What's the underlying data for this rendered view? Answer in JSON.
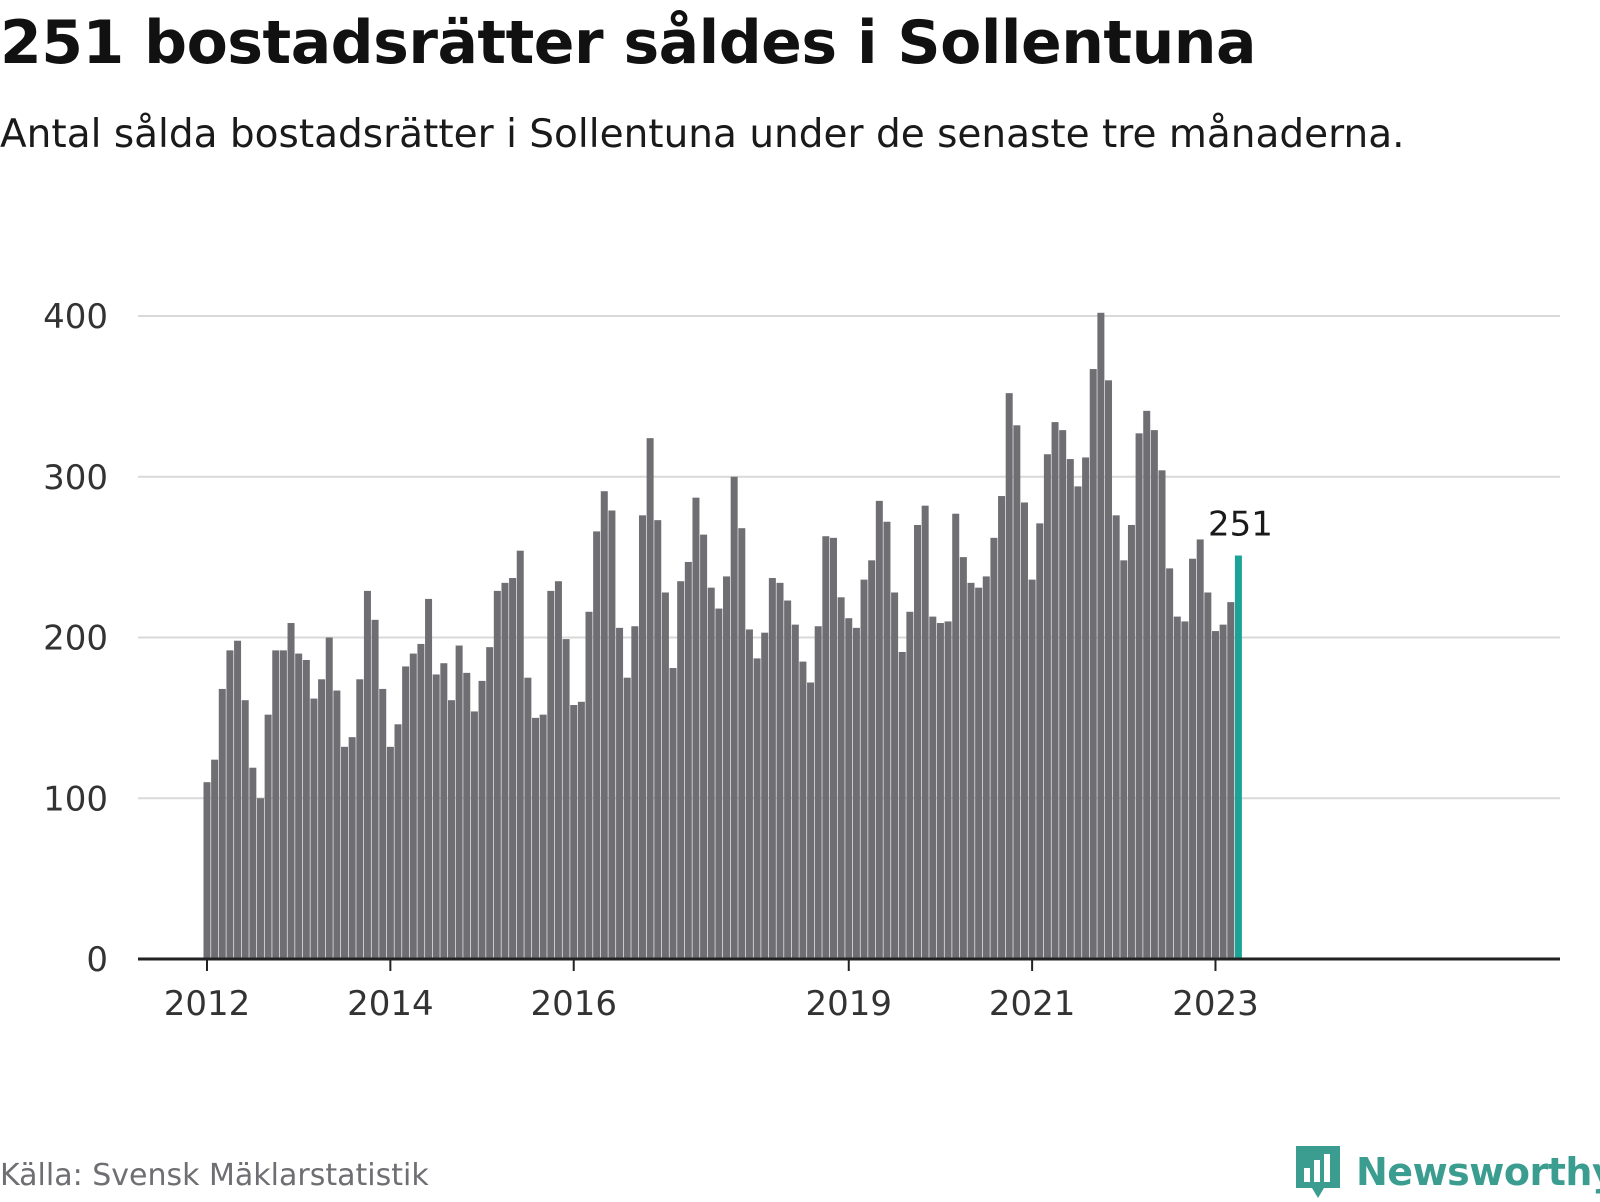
{
  "header": {
    "title": "251 bostadsrätter såldes i Sollentuna",
    "subtitle": "Antal sålda bostadsrätter i Sollentuna under de senaste tre månaderna."
  },
  "footer": {
    "source": "Källa: Svensk Mäklarstatistik",
    "brand": "Newsworthy"
  },
  "colors": {
    "bar": "#6e6e73",
    "highlight": "#1aa396",
    "grid": "#d9d9d9",
    "axis": "#222222",
    "text": "#333333",
    "brand": "#3a9d8f"
  },
  "chart_data": {
    "type": "bar",
    "title": "251 bostadsrätter såldes i Sollentuna",
    "subtitle": "Antal sålda bostadsrätter i Sollentuna under de senaste tre månaderna.",
    "xlabel": "",
    "ylabel": "",
    "ylim": [
      0,
      400
    ],
    "yticks": [
      0,
      100,
      200,
      300,
      400
    ],
    "grid": true,
    "start": "2012-01",
    "xticks": [
      {
        "label": "2012",
        "index": 0
      },
      {
        "label": "2014",
        "index": 24
      },
      {
        "label": "2016",
        "index": 48
      },
      {
        "label": "2019",
        "index": 84
      },
      {
        "label": "2021",
        "index": 108
      },
      {
        "label": "2023",
        "index": 132
      }
    ],
    "values": [
      110,
      124,
      168,
      192,
      198,
      161,
      119,
      100,
      152,
      192,
      192,
      209,
      190,
      186,
      162,
      174,
      200,
      167,
      132,
      138,
      174,
      229,
      211,
      168,
      132,
      146,
      182,
      190,
      196,
      224,
      177,
      184,
      161,
      195,
      178,
      154,
      173,
      194,
      229,
      234,
      237,
      254,
      175,
      150,
      152,
      229,
      235,
      199,
      158,
      160,
      216,
      266,
      291,
      279,
      206,
      175,
      207,
      276,
      324,
      273,
      228,
      181,
      235,
      247,
      287,
      264,
      231,
      218,
      238,
      300,
      268,
      205,
      187,
      203,
      237,
      234,
      223,
      208,
      185,
      172,
      207,
      263,
      262,
      225,
      212,
      206,
      236,
      248,
      285,
      272,
      228,
      191,
      216,
      270,
      282,
      213,
      209,
      210,
      277,
      250,
      234,
      231,
      238,
      262,
      288,
      352,
      332,
      284,
      236,
      271,
      314,
      334,
      329,
      311,
      294,
      312,
      367,
      402,
      360,
      276,
      248,
      270,
      327,
      341,
      329,
      304,
      243,
      213,
      210,
      249,
      261,
      228,
      204,
      208,
      222,
      251
    ],
    "highlight_index": 135,
    "highlight_label": "251"
  }
}
